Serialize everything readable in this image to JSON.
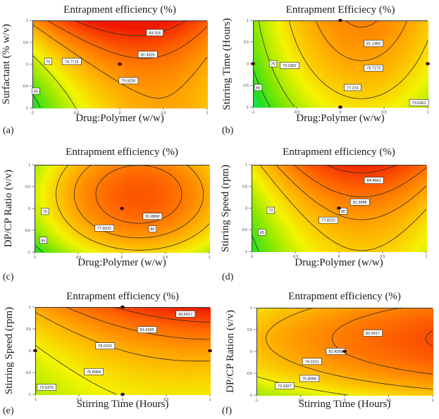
{
  "figure": {
    "description": "Six 2D contour plots of Entrapment efficiency response surfaces"
  },
  "chart_data": [
    {
      "type": "heatmap",
      "panel_tag": "(a)",
      "title": "Entrapment efficiency (%)",
      "xlabel": "Drug:Polymer (w/w)",
      "ylabel": "Surfactant (% w/v)",
      "xlim": [
        -1,
        1
      ],
      "ylim": [
        -1,
        1
      ],
      "xticks": [
        "-1",
        "-0.5",
        "0",
        "0.5",
        "1"
      ],
      "yticks": [
        "-1",
        "-0.5",
        "0",
        "0.5",
        "1"
      ],
      "model": {
        "b0": 81.5,
        "bx": 3.0,
        "by": 4.2,
        "bxx": -5.0,
        "byy": 1.2,
        "bxy": -1.8
      },
      "contours": [
        {
          "level": 65,
          "label": "65",
          "at": [
            -0.96,
            -0.62
          ]
        },
        {
          "level": 70,
          "label": "70",
          "at": [
            -0.82,
            0.06
          ]
        },
        {
          "level": 74.7715,
          "label": "74.7715",
          "at": [
            -0.55,
            0.06
          ]
        },
        {
          "level": 79.9226,
          "label": "79.9226",
          "at": [
            0.1,
            -0.38
          ]
        },
        {
          "level": 82.4526,
          "label": "82.4526",
          "at": [
            0.32,
            0.22
          ]
        },
        {
          "level": 84.924,
          "label": "84.924",
          "at": [
            0.4,
            0.72
          ]
        }
      ],
      "design_points": [
        [
          0,
          0
        ]
      ]
    },
    {
      "type": "heatmap",
      "panel_tag": "(b)",
      "title": "Entrapment Efficiecy (%)",
      "xlabel": "Drug:Polymer (w/w)",
      "ylabel": "Stirring  Time (Hours)",
      "xlim": [
        -1,
        1
      ],
      "ylim": [
        -1,
        1
      ],
      "xticks": [
        "-1",
        "-0.5",
        "0",
        "0.5",
        "1"
      ],
      "yticks": [
        "-1",
        "-0.5",
        "0",
        "0.5",
        "1"
      ],
      "model": {
        "b0": 79.2,
        "bx": 2.9,
        "by": 2.4,
        "bxx": -6.0,
        "byy": -0.6,
        "bxy": 0.0
      },
      "contours": [
        {
          "level": 65,
          "label": "65",
          "at": [
            -0.94,
            -0.55
          ]
        },
        {
          "level": 70,
          "label": "70",
          "at": [
            -0.77,
            0.0
          ]
        },
        {
          "level": 73.0361,
          "label": "73.0361",
          "at": [
            -0.58,
            -0.04
          ]
        },
        {
          "level": 77.224,
          "label": "77.224",
          "at": [
            0.14,
            -0.55
          ]
        },
        {
          "level": 79.7172,
          "label": "79.7172",
          "at": [
            0.38,
            -0.1
          ]
        },
        {
          "level": 81.1483,
          "label": "81.1483",
          "at": [
            0.38,
            0.47
          ]
        },
        {
          "level": 73.0361,
          "label": "73.0361",
          "at": [
            0.9,
            -0.9
          ]
        }
      ],
      "design_points": [
        [
          0,
          1
        ],
        [
          -1,
          0
        ],
        [
          1,
          0
        ],
        [
          0,
          -1
        ]
      ]
    },
    {
      "type": "heatmap",
      "panel_tag": "(c)",
      "title": "Entrapment efficiency (%)",
      "xlabel": "Drug:Polymer (w/w)",
      "ylabel": "DP/CP Ratio (v/v)",
      "xlim": [
        -1,
        1
      ],
      "ylim": [
        -1,
        1
      ],
      "xticks": [
        "-1",
        "-0.5",
        "0",
        "0.5",
        "1"
      ],
      "yticks": [
        "-1",
        "-0.5",
        "0",
        "0.5",
        "1"
      ],
      "model": {
        "b0": 82.8,
        "bx": 2.4,
        "by": 2.2,
        "bxx": -6.2,
        "byy": -3.4,
        "bxy": 0.0
      },
      "contours": [
        {
          "level": 65,
          "label": "65",
          "at": [
            -0.9,
            -0.73
          ]
        },
        {
          "level": 70,
          "label": "70",
          "at": [
            -0.88,
            -0.07
          ]
        },
        {
          "level": 77.8222,
          "label": "77.8222",
          "at": [
            -0.2,
            -0.45
          ]
        },
        {
          "level": 80,
          "label": "80",
          "at": [
            0.35,
            -0.47
          ]
        },
        {
          "level": 81.8868,
          "label": "81.8868",
          "at": [
            0.35,
            -0.18
          ]
        }
      ],
      "design_points": [
        [
          0,
          0
        ]
      ]
    },
    {
      "type": "heatmap",
      "panel_tag": "(d)",
      "title": "Entrapment efficiency (%)",
      "xlabel": "Drug:Polymer (w/w)",
      "ylabel": "Stirring  Speed (rpm)",
      "xlim": [
        -1,
        1
      ],
      "ylim": [
        -1,
        1
      ],
      "xticks": [
        "-1",
        "-0.5",
        "0",
        "0.5",
        "1"
      ],
      "yticks": [
        "-1",
        "-0.5",
        "0",
        "0.5",
        "1"
      ],
      "model": {
        "b0": 80.6,
        "bx": 2.9,
        "by": 3.8,
        "bxx": -5.6,
        "byy": 0.6,
        "bxy": 0.0
      },
      "contours": [
        {
          "level": 65,
          "label": "65",
          "at": [
            -0.88,
            -0.56
          ]
        },
        {
          "level": 70,
          "label": "70",
          "at": [
            -0.78,
            -0.05
          ]
        },
        {
          "level": 77.8222,
          "label": "77.8222",
          "at": [
            -0.12,
            -0.28
          ]
        },
        {
          "level": 80,
          "label": "80",
          "at": [
            0.05,
            -0.07
          ]
        },
        {
          "level": 81.9988,
          "label": "81.9988",
          "at": [
            0.24,
            0.14
          ]
        },
        {
          "level": 84.4561,
          "label": "84.4561",
          "at": [
            0.4,
            0.64
          ]
        }
      ],
      "design_points": [
        [
          0,
          0
        ]
      ]
    },
    {
      "type": "heatmap",
      "panel_tag": "(e)",
      "title": "Entrapment efficiency (%)",
      "xlabel": "Stirring Time (Hours)",
      "ylabel": "Stirring Speed (rpm)",
      "xlim": [
        -1,
        1
      ],
      "ylim": [
        -1,
        1
      ],
      "xticks": [
        "-1",
        "-0.5",
        "0",
        "0.5",
        "1"
      ],
      "yticks": [
        "-1",
        "-0.5",
        "0",
        "0.5",
        "1"
      ],
      "model": {
        "b0": 79.0,
        "bx": 2.3,
        "by": 4.0,
        "bxx": -1.2,
        "byy": 1.0,
        "bxy": 0.9
      },
      "contours": [
        {
          "level": 72.5375,
          "label": "72.5375",
          "at": [
            -0.87,
            -0.84
          ]
        },
        {
          "level": 75.8968,
          "label": "75.8968",
          "at": [
            -0.33,
            -0.48
          ]
        },
        {
          "level": 79.0101,
          "label": "79.0101",
          "at": [
            -0.2,
            0.11
          ]
        },
        {
          "level": 81.4295,
          "label": "81.4295",
          "at": [
            0.28,
            0.48
          ]
        },
        {
          "level": 83.6917,
          "label": "83.6917",
          "at": [
            0.72,
            0.84
          ]
        }
      ],
      "design_points": [
        [
          0,
          1
        ],
        [
          -1,
          0
        ],
        [
          1,
          0
        ],
        [
          0,
          -1
        ]
      ]
    },
    {
      "type": "heatmap",
      "panel_tag": "(f)",
      "title": "Entrapment efficiency (%)",
      "xlabel": "Stirring Time (Hours)",
      "ylabel": "DP/CP Ration (v/v)",
      "xlim": [
        -1,
        1
      ],
      "ylim": [
        -1,
        1
      ],
      "xticks": [
        "-1",
        "-0.5",
        "0",
        "0.5",
        "1"
      ],
      "yticks": [
        "-1",
        "-0.5",
        "0",
        "0.5",
        "1"
      ],
      "model": {
        "b0": 81.5,
        "bx": 2.6,
        "by": 2.1,
        "bxx": -0.6,
        "byy": -3.6,
        "bxy": 0.0
      },
      "contours": [
        {
          "level": 72.0327,
          "label": "72.0327",
          "at": [
            -0.68,
            -0.79
          ]
        },
        {
          "level": 75.8968,
          "label": "75.8968",
          "at": [
            -0.4,
            -0.62
          ]
        },
        {
          "level": 79.0101,
          "label": "79.0101",
          "at": [
            -0.37,
            -0.23
          ]
        },
        {
          "level": 81.4295,
          "label": "81.4295",
          "at": [
            -0.1,
            0.0
          ]
        },
        {
          "level": 83.6917,
          "label": "83.6917",
          "at": [
            0.32,
            0.42
          ]
        }
      ],
      "design_points": [
        [
          0,
          0
        ]
      ]
    }
  ],
  "colorscale": {
    "low": "#2aa8ff",
    "stops": [
      "#27b6ff",
      "#18e0b0",
      "#22e020",
      "#8ee800",
      "#f4f400",
      "#ffb000",
      "#ff6a00",
      "#f21800"
    ],
    "range": [
      62,
      86
    ]
  }
}
